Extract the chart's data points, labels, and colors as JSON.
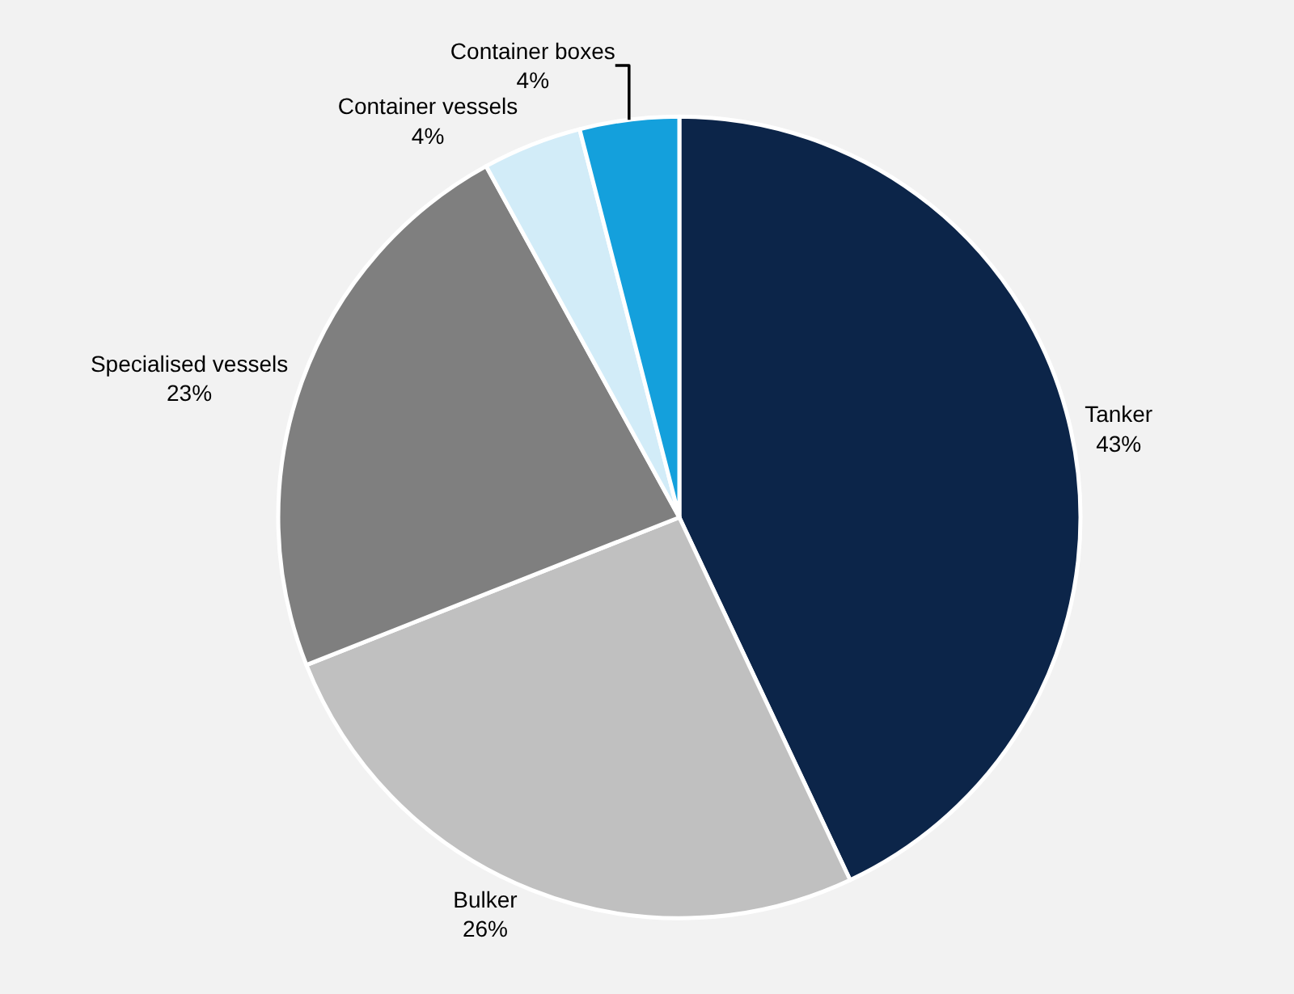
{
  "chart_data": {
    "type": "pie",
    "categories": [
      "Tanker",
      "Bulker",
      "Specialised vessels",
      "Container vessels",
      "Container boxes"
    ],
    "values": [
      43,
      26,
      23,
      4,
      4
    ],
    "value_labels": [
      "43%",
      "26%",
      "23%",
      "4%",
      "4%"
    ],
    "colors": [
      "#0c2549",
      "#c0c0c0",
      "#7f7f7f",
      "#d2ecf8",
      "#14a0dc"
    ]
  }
}
